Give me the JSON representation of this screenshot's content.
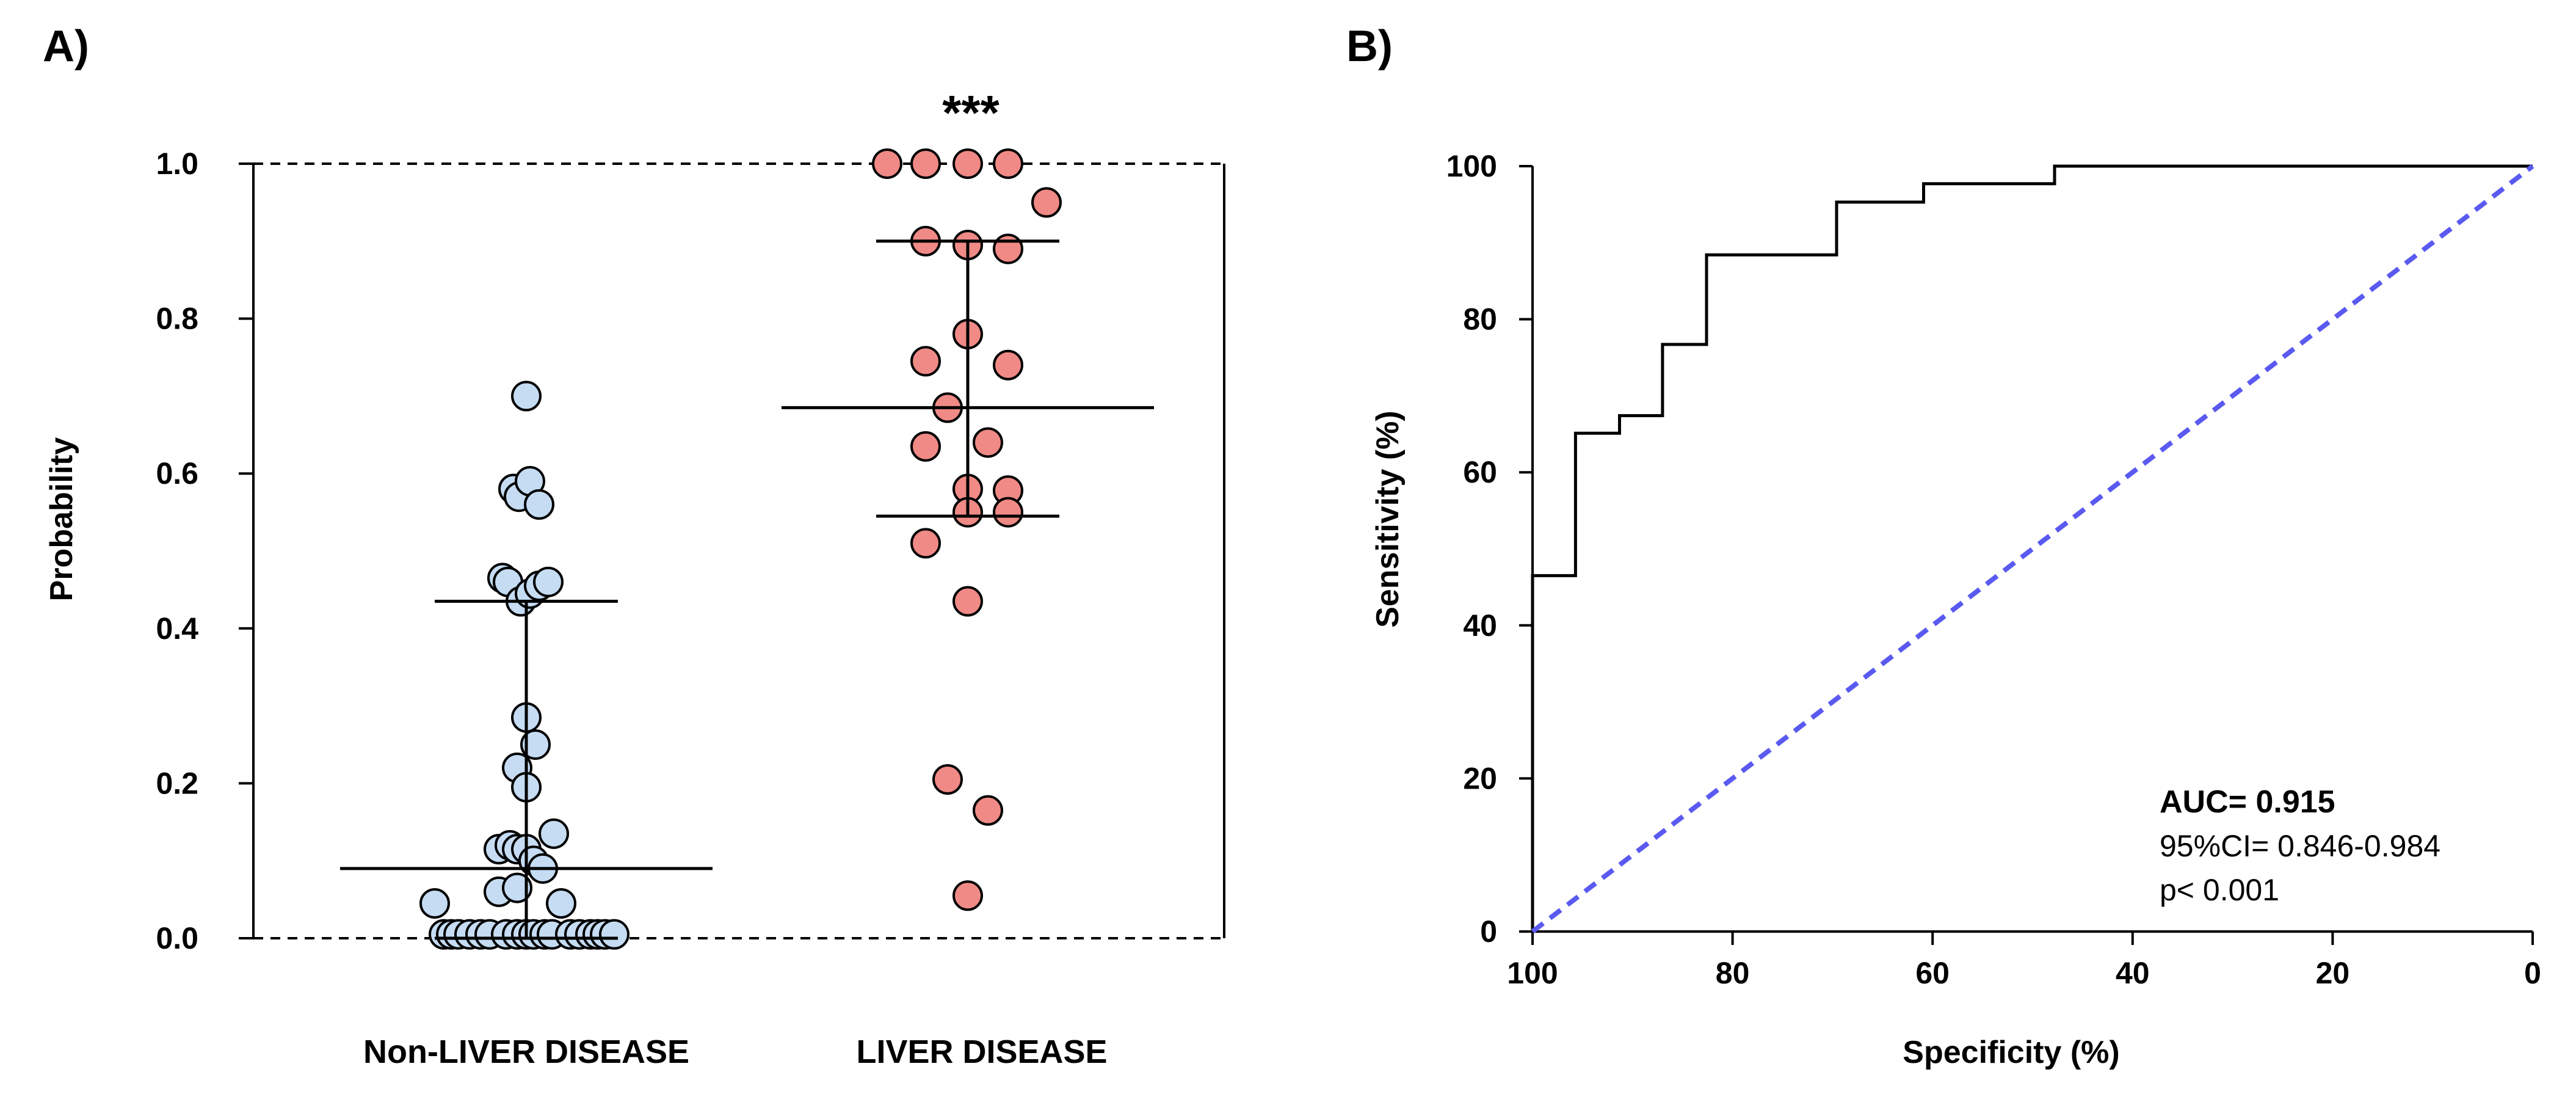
{
  "panels": {
    "a_label": "A)",
    "b_label": "B)"
  },
  "chart_data": [
    {
      "type": "scatter",
      "panel": "A)",
      "ylabel": "Probability",
      "ylim": [
        0,
        1
      ],
      "yticks": [
        "0.0",
        "0.2",
        "0.4",
        "0.6",
        "0.8",
        "1.0"
      ],
      "significance": "***",
      "categories": [
        "Non-LIVER DISEASE",
        "LIVER DISEASE"
      ],
      "colors": {
        "non_liver": "#c5dcf3",
        "liver": "#f08a86",
        "edge": "#000000"
      },
      "groups": [
        {
          "name": "Non-LIVER DISEASE",
          "median": 0.09,
          "q1": 0.0,
          "q3": 0.435,
          "points": [
            {
              "x": 0.0,
              "y": 0.7
            },
            {
              "x": -0.07,
              "y": 0.58
            },
            {
              "x": -0.04,
              "y": 0.57
            },
            {
              "x": 0.02,
              "y": 0.59
            },
            {
              "x": 0.07,
              "y": 0.56
            },
            {
              "x": -0.13,
              "y": 0.465
            },
            {
              "x": -0.1,
              "y": 0.46
            },
            {
              "x": -0.03,
              "y": 0.435
            },
            {
              "x": 0.02,
              "y": 0.445
            },
            {
              "x": 0.07,
              "y": 0.455
            },
            {
              "x": 0.12,
              "y": 0.46
            },
            {
              "x": 0.0,
              "y": 0.285
            },
            {
              "x": 0.05,
              "y": 0.25
            },
            {
              "x": -0.05,
              "y": 0.22
            },
            {
              "x": 0.0,
              "y": 0.195
            },
            {
              "x": 0.15,
              "y": 0.135
            },
            {
              "x": -0.15,
              "y": 0.115
            },
            {
              "x": -0.09,
              "y": 0.12
            },
            {
              "x": -0.05,
              "y": 0.115
            },
            {
              "x": 0.0,
              "y": 0.115
            },
            {
              "x": 0.04,
              "y": 0.1
            },
            {
              "x": 0.09,
              "y": 0.09
            },
            {
              "x": -0.15,
              "y": 0.06
            },
            {
              "x": -0.05,
              "y": 0.065
            },
            {
              "x": -0.5,
              "y": 0.045
            },
            {
              "x": 0.19,
              "y": 0.045
            },
            {
              "x": -0.45,
              "y": 0.005
            },
            {
              "x": -0.41,
              "y": 0.005
            },
            {
              "x": -0.37,
              "y": 0.005
            },
            {
              "x": -0.31,
              "y": 0.005
            },
            {
              "x": -0.25,
              "y": 0.005
            },
            {
              "x": -0.2,
              "y": 0.005
            },
            {
              "x": -0.11,
              "y": 0.005
            },
            {
              "x": -0.05,
              "y": 0.005
            },
            {
              "x": 0.0,
              "y": 0.005
            },
            {
              "x": 0.04,
              "y": 0.005
            },
            {
              "x": 0.1,
              "y": 0.005
            },
            {
              "x": 0.14,
              "y": 0.005
            },
            {
              "x": 0.24,
              "y": 0.005
            },
            {
              "x": 0.29,
              "y": 0.005
            },
            {
              "x": 0.35,
              "y": 0.005
            },
            {
              "x": 0.39,
              "y": 0.005
            },
            {
              "x": 0.43,
              "y": 0.005
            },
            {
              "x": 0.48,
              "y": 0.005
            }
          ]
        },
        {
          "name": "LIVER DISEASE",
          "median": 0.685,
          "q1": 0.545,
          "q3": 0.9,
          "points": [
            {
              "x": -0.44,
              "y": 1.0
            },
            {
              "x": -0.23,
              "y": 1.0
            },
            {
              "x": 0.0,
              "y": 1.0
            },
            {
              "x": 0.22,
              "y": 1.0
            },
            {
              "x": 0.43,
              "y": 0.95
            },
            {
              "x": -0.23,
              "y": 0.9
            },
            {
              "x": 0.0,
              "y": 0.895
            },
            {
              "x": 0.22,
              "y": 0.89
            },
            {
              "x": 0.0,
              "y": 0.78
            },
            {
              "x": -0.23,
              "y": 0.745
            },
            {
              "x": 0.22,
              "y": 0.74
            },
            {
              "x": -0.11,
              "y": 0.685
            },
            {
              "x": -0.23,
              "y": 0.635
            },
            {
              "x": 0.11,
              "y": 0.64
            },
            {
              "x": 0.0,
              "y": 0.58
            },
            {
              "x": 0.22,
              "y": 0.578
            },
            {
              "x": 0.0,
              "y": 0.55
            },
            {
              "x": 0.22,
              "y": 0.55
            },
            {
              "x": -0.23,
              "y": 0.51
            },
            {
              "x": 0.0,
              "y": 0.435
            },
            {
              "x": -0.11,
              "y": 0.205
            },
            {
              "x": 0.11,
              "y": 0.165
            },
            {
              "x": 0.0,
              "y": 0.055
            }
          ]
        }
      ]
    },
    {
      "type": "line",
      "panel": "B)",
      "title": "",
      "xlabel": "Specificity (%)",
      "ylabel": "Sensitivity (%)",
      "xlim": [
        100,
        0
      ],
      "ylim": [
        0,
        100
      ],
      "xticks": [
        "100",
        "80",
        "60",
        "40",
        "20",
        "0"
      ],
      "yticks": [
        "0",
        "20",
        "40",
        "60",
        "80",
        "100"
      ],
      "series": [
        {
          "name": "ROC",
          "color": "#000000",
          "points": [
            [
              100,
              0
            ],
            [
              100,
              46.5
            ],
            [
              95.7,
              46.5
            ],
            [
              95.7,
              65.1
            ],
            [
              91.3,
              65.1
            ],
            [
              91.3,
              67.4
            ],
            [
              87.0,
              67.4
            ],
            [
              87.0,
              76.7
            ],
            [
              82.6,
              76.7
            ],
            [
              82.6,
              88.4
            ],
            [
              69.6,
              88.4
            ],
            [
              69.6,
              95.3
            ],
            [
              60.9,
              95.3
            ],
            [
              60.9,
              97.7
            ],
            [
              47.8,
              97.7
            ],
            [
              47.8,
              100
            ],
            [
              0,
              100
            ]
          ]
        },
        {
          "name": "Reference",
          "color": "#5a5af0",
          "dashed": true,
          "points": [
            [
              100,
              0
            ],
            [
              0,
              100
            ]
          ]
        }
      ],
      "annotations": {
        "auc": "AUC= 0.915",
        "ci": "95%CI= 0.846-0.984",
        "p": "p< 0.001"
      }
    }
  ]
}
